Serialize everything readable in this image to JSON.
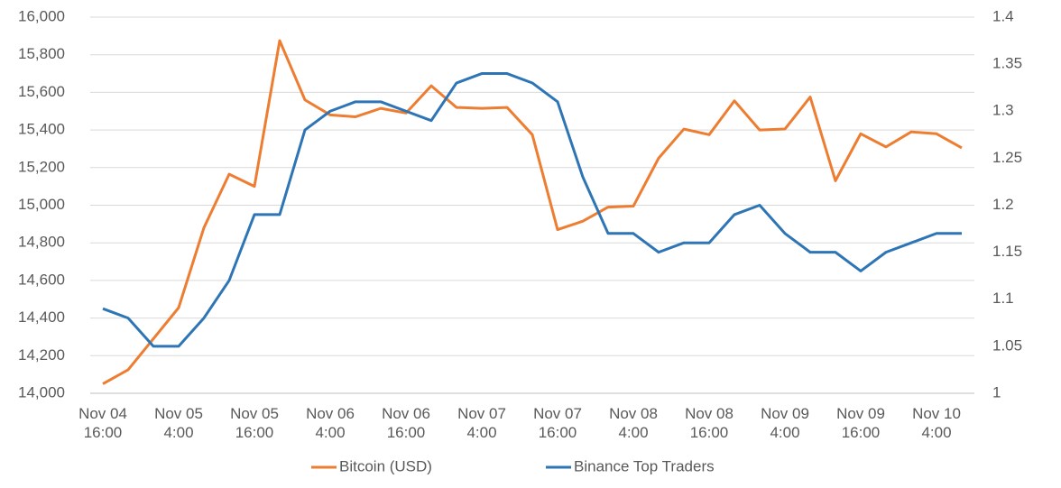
{
  "chart_data": {
    "type": "line",
    "categories": [
      "Nov 04\n16:00",
      null,
      null,
      "Nov 05\n4:00",
      null,
      null,
      "Nov 05\n16:00",
      null,
      null,
      "Nov 06\n4:00",
      null,
      null,
      "Nov 06\n16:00",
      null,
      null,
      "Nov 07\n4:00",
      null,
      null,
      "Nov 07\n16:00",
      null,
      null,
      "Nov 08\n4:00",
      null,
      null,
      "Nov 08\n16:00",
      null,
      null,
      "Nov 09\n4:00",
      null,
      null,
      "Nov 09\n16:00",
      null,
      null,
      "Nov 10\n4:00",
      null
    ],
    "series": [
      {
        "name": "Bitcoin (USD)",
        "color": "#ed7d31",
        "values": [
          14050,
          14125,
          14290,
          14455,
          14880,
          15165,
          15100,
          15875,
          15560,
          15480,
          15470,
          15515,
          15490,
          15635,
          15520,
          15515,
          15520,
          15375,
          14870,
          14915,
          14990,
          14995,
          15250,
          15405,
          15375,
          15555,
          15400,
          15405,
          15575,
          15130,
          15380,
          15310,
          15390,
          15380,
          15305
        ]
      },
      {
        "name": "Binance Top Traders",
        "color": "#2e75b6",
        "axis": "y2",
        "values": [
          1.09,
          1.08,
          1.05,
          1.05,
          1.08,
          1.12,
          1.19,
          1.19,
          1.28,
          1.3,
          1.31,
          1.31,
          1.3,
          1.29,
          1.33,
          1.34,
          1.34,
          1.33,
          1.31,
          1.23,
          1.17,
          1.17,
          1.15,
          1.16,
          1.16,
          1.19,
          1.2,
          1.17,
          1.15,
          1.15,
          1.13,
          1.15,
          1.16,
          1.17,
          1.17
        ]
      }
    ],
    "ylim": [
      14000,
      16000
    ],
    "yticks": [
      {
        "value": 14000,
        "label": "14,000"
      },
      {
        "value": 14200,
        "label": "14,200"
      },
      {
        "value": 14400,
        "label": "14,400"
      },
      {
        "value": 14600,
        "label": "14,600"
      },
      {
        "value": 14800,
        "label": "14,800"
      },
      {
        "value": 15000,
        "label": "15,000"
      },
      {
        "value": 15200,
        "label": "15,200"
      },
      {
        "value": 15400,
        "label": "15,400"
      },
      {
        "value": 15600,
        "label": "15,600"
      },
      {
        "value": 15800,
        "label": "15,800"
      },
      {
        "value": 16000,
        "label": "16,000"
      }
    ],
    "y2lim": [
      1,
      1.4
    ],
    "y2ticks": [
      1,
      1.05,
      1.1,
      1.15,
      1.2,
      1.25,
      1.3,
      1.35,
      1.4
    ],
    "grid": true,
    "legend": "bottom"
  }
}
